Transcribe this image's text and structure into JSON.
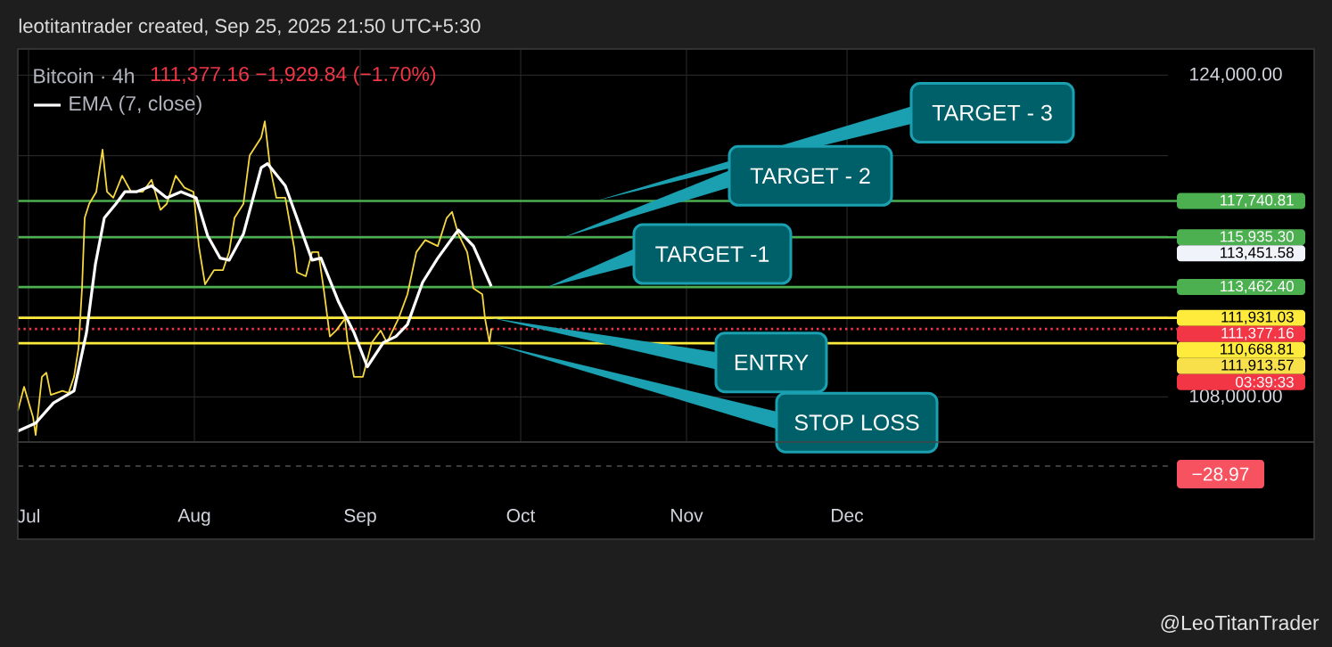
{
  "chart_data": {
    "type": "line",
    "title": "Bitcoin · 4h",
    "subtitle": "111,377.16  −1,929.84 (−1.70%)",
    "xlim": [
      "2025-06-29",
      "2026-01-30"
    ],
    "xticks": [
      {
        "value": "2025-07-01",
        "label": "Jul"
      },
      {
        "value": "2025-08-01",
        "label": "Aug"
      },
      {
        "value": "2025-09-01",
        "label": "Sep"
      },
      {
        "value": "2025-10-01",
        "label": "Oct"
      },
      {
        "value": "2025-11-01",
        "label": "Nov"
      },
      {
        "value": "2025-12-01",
        "label": "Dec"
      }
    ],
    "ylim": [
      105800,
      125300
    ],
    "yticks": [
      {
        "value": 108000,
        "label": "108,000.00"
      },
      {
        "value": 112000,
        "label": null
      },
      {
        "value": 116000,
        "label": null
      },
      {
        "value": 120000,
        "label": null
      },
      {
        "value": 124000,
        "label": "124,000.00"
      }
    ],
    "grid": true,
    "legend": "top left",
    "series": [
      {
        "color": "#f5d742",
        "x": [
          "2025-06-29T00:00",
          "2025-06-30T04:00",
          "2025-07-01T20:00",
          "2025-07-02T08:00",
          "2025-07-03T12:00",
          "2025-07-04T08:00",
          "2025-07-05T04:00",
          "2025-07-07T08:00",
          "2025-07-08T12:00",
          "2025-07-09T12:00",
          "2025-07-10T08:00",
          "2025-07-11T00:00",
          "2025-07-11T12:00",
          "2025-07-12T08:00",
          "2025-07-13T16:00",
          "2025-07-14T20:00",
          "2025-07-15T16:00",
          "2025-07-16T20:00",
          "2025-07-18T12:00",
          "2025-07-20T04:00",
          "2025-07-22T08:00",
          "2025-07-24T00:00",
          "2025-07-25T16:00",
          "2025-07-26T20:00",
          "2025-07-28T12:00",
          "2025-07-30T04:00",
          "2025-07-31T20:00",
          "2025-08-01T20:00",
          "2025-08-03T00:00",
          "2025-08-04T16:00",
          "2025-08-06T08:00",
          "2025-08-07T12:00",
          "2025-08-08T12:00",
          "2025-08-10T04:00",
          "2025-08-11T08:00",
          "2025-08-13T12:00",
          "2025-08-14T04:00",
          "2025-08-15T04:00",
          "2025-08-16T08:00",
          "2025-08-18T00:00",
          "2025-08-19T16:00",
          "2025-08-20T04:00",
          "2025-08-21T20:00",
          "2025-08-23T00:00",
          "2025-08-24T04:00",
          "2025-08-25T04:00",
          "2025-08-26T08:00",
          "2025-08-27T12:00",
          "2025-08-29T04:00",
          "2025-08-29T16:00",
          "2025-08-30T20:00",
          "2025-09-01T12:00",
          "2025-09-03T04:00",
          "2025-09-04T20:00",
          "2025-09-06T00:00",
          "2025-09-08T04:00",
          "2025-09-09T20:00",
          "2025-09-11T12:00",
          "2025-09-13T04:00",
          "2025-09-15T12:00",
          "2025-09-17T04:00",
          "2025-09-18T04:00",
          "2025-09-19T08:00",
          "2025-09-21T00:00",
          "2025-09-22T04:00",
          "2025-09-23T20:00",
          "2025-09-24T08:00",
          "2025-09-25T04:00",
          "2025-09-25T12:00"
        ],
        "values": [
          107300,
          108500,
          107000,
          106100,
          109000,
          109200,
          108100,
          108300,
          108200,
          109000,
          110400,
          113400,
          116900,
          117600,
          118200,
          120300,
          118200,
          117900,
          119000,
          118200,
          118200,
          118800,
          117300,
          117600,
          119000,
          118400,
          118200,
          115500,
          113600,
          114300,
          114300,
          115200,
          116900,
          117600,
          120000,
          120900,
          121700,
          119400,
          117900,
          117900,
          115400,
          114200,
          114000,
          115200,
          115200,
          113400,
          111000,
          111300,
          111900,
          110700,
          109000,
          109000,
          110700,
          111300,
          110700,
          111900,
          113100,
          115200,
          115800,
          115500,
          116900,
          117200,
          116100,
          115200,
          113400,
          113100,
          111900,
          110700,
          111400
        ]
      },
      {
        "name": "EMA (7, close)",
        "color": "#ffffff",
        "x": [
          "2025-06-29T00:00",
          "2025-07-02T08:00",
          "2025-07-05T16:00",
          "2025-07-09T12:00",
          "2025-07-11T20:00",
          "2025-07-13T12:00",
          "2025-07-15T04:00",
          "2025-07-17T08:00",
          "2025-07-19T00:00",
          "2025-07-21T04:00",
          "2025-07-24T00:00",
          "2025-07-26T20:00",
          "2025-07-29T12:00",
          "2025-08-01T08:00",
          "2025-08-03T12:00",
          "2025-08-05T20:00",
          "2025-08-07T12:00",
          "2025-08-10T04:00",
          "2025-08-13T12:00",
          "2025-08-14T16:00",
          "2025-08-18T00:00",
          "2025-08-23T00:00",
          "2025-08-24T16:00",
          "2025-08-28T00:00",
          "2025-08-30T20:00",
          "2025-09-02T08:00",
          "2025-09-05T08:00",
          "2025-09-07T16:00",
          "2025-09-09T20:00",
          "2025-09-12T16:00",
          "2025-09-15T12:00",
          "2025-09-19T08:00",
          "2025-09-22T04:00",
          "2025-09-25T12:00"
        ],
        "values": [
          106300,
          106700,
          107700,
          108300,
          111200,
          114600,
          116900,
          117600,
          118200,
          118200,
          118500,
          117900,
          118200,
          117900,
          116000,
          114900,
          114800,
          116100,
          119400,
          119600,
          118500,
          114800,
          114900,
          112700,
          111200,
          109500,
          110700,
          111000,
          111600,
          113700,
          114900,
          116300,
          115500,
          113500
        ]
      }
    ],
    "ref_lines": [
      {
        "axis": "y",
        "value": 117740.81,
        "label": "117,740.81",
        "color": "#4caf50"
      },
      {
        "axis": "y",
        "value": 115935.3,
        "label": "115,935.30",
        "color": "#4caf50"
      },
      {
        "axis": "y",
        "value": 113462.4,
        "label": "113,462.40",
        "color": "#4caf50"
      },
      {
        "axis": "y",
        "value": 111931.03,
        "label": "111,931.03",
        "color": "#ffeb3b"
      },
      {
        "axis": "y",
        "value": 111377.16,
        "label": "111,377.16",
        "color": "#f23645",
        "line_style": "dotted"
      },
      {
        "axis": "y",
        "value": 110668.81,
        "label": "110,668.81",
        "color": "#ffeb3b"
      }
    ],
    "annotations": [
      {
        "text": "TARGET - 3",
        "x": "2025-10-15",
        "y": 117740.81
      },
      {
        "text": "TARGET - 2",
        "x": "2025-10-09",
        "y": 115935.3
      },
      {
        "text": "TARGET -1",
        "x": "2025-10-06",
        "y": 113462.4
      },
      {
        "text": "ENTRY",
        "x": "2025-09-25T12:00",
        "y": 111931.03
      },
      {
        "text": "STOP LOSS",
        "x": "2025-09-25T12:00",
        "y": 110668.81
      },
      "113,451.58",
      "111,913.57",
      "03:39:33",
      "−28.97",
      "leotitantrader created, Sep 25, 2025 21:50 UTC+5:30",
      "@LeoTitanTrader"
    ]
  }
}
